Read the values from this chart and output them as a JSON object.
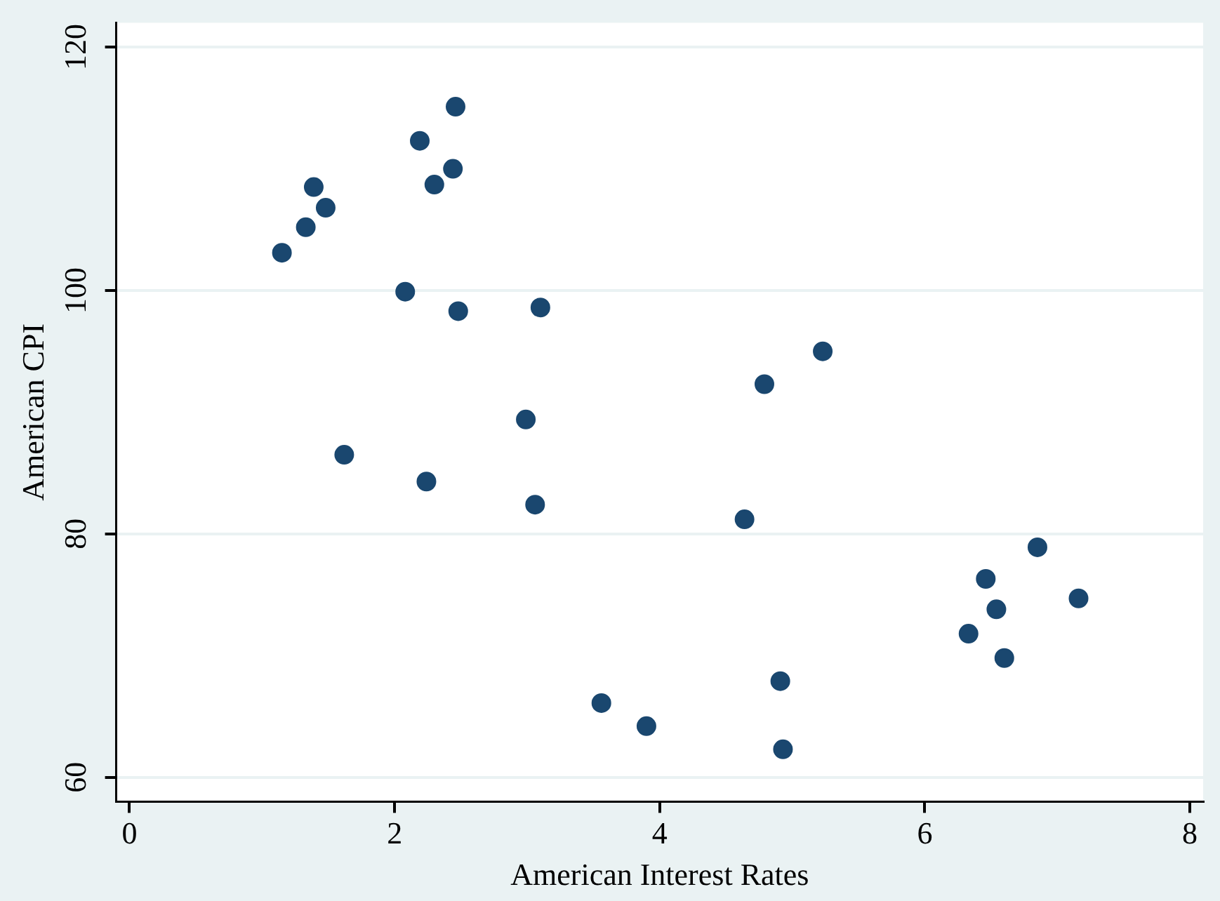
{
  "chart_data": {
    "type": "scatter",
    "xlabel": "American Interest Rates",
    "ylabel": "American CPI",
    "x": [
      2.46,
      2.19,
      2.44,
      2.3,
      1.39,
      1.48,
      1.33,
      1.15,
      2.08,
      2.48,
      3.1,
      2.99,
      1.62,
      2.24,
      3.06,
      5.23,
      4.79,
      4.64,
      6.85,
      6.46,
      7.16,
      6.54,
      6.33,
      6.6,
      4.91,
      3.56,
      3.9,
      4.93
    ],
    "series": [
      {
        "color": "#1a476f",
        "values": [
          115.1,
          112.3,
          110.0,
          108.7,
          108.5,
          106.8,
          105.2,
          103.1,
          99.9,
          98.3,
          98.6,
          89.4,
          86.5,
          84.3,
          82.4,
          95.0,
          92.3,
          81.2,
          78.9,
          76.3,
          74.7,
          73.8,
          71.8,
          69.8,
          67.9,
          66.1,
          64.2,
          62.3
        ]
      }
    ],
    "xlim": [
      -0.1,
      8.1
    ],
    "ylim": [
      58,
      122
    ],
    "xticks": [
      0,
      2,
      4,
      6,
      8
    ],
    "yticks": [
      60,
      80,
      100,
      120
    ],
    "grid": "y",
    "marker": "circle",
    "legend": false
  }
}
